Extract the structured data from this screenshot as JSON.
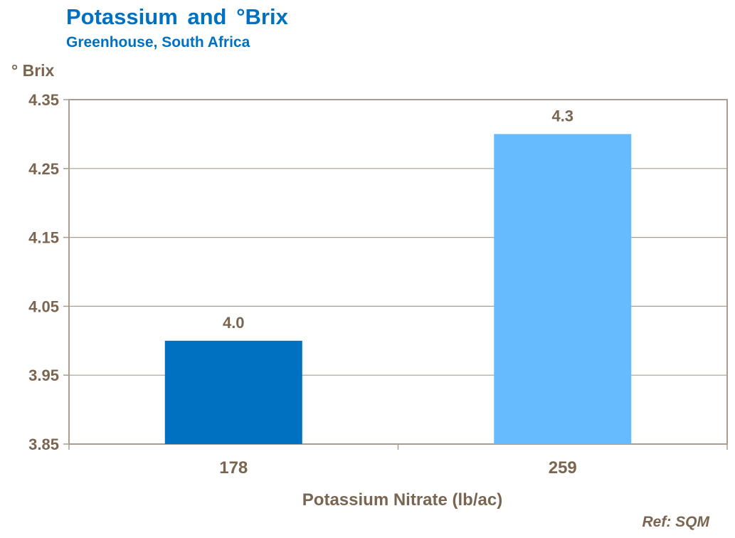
{
  "chart_data": {
    "type": "bar",
    "title": "Potassium and °Brix",
    "subtitle": "Greenhouse, South Africa",
    "ylabel": "° Brix",
    "xlabel": "Potassium Nitrate (lb/ac)",
    "categories": [
      "178",
      "259"
    ],
    "values": [
      4.0,
      4.3
    ],
    "data_labels": [
      "4.0",
      "4.3"
    ],
    "bar_colors": [
      "#0070c0",
      "#66bbff"
    ],
    "ylim": [
      3.85,
      4.35
    ],
    "yticks": [
      "3.85",
      "3.95",
      "4.05",
      "4.15",
      "4.25",
      "4.35"
    ],
    "grid": true,
    "legend": "none"
  },
  "footer": {
    "reference": "Ref: SQM"
  },
  "colors": {
    "title": "#0070c0",
    "text": "#7a6650",
    "axis": "#a89d8f"
  }
}
